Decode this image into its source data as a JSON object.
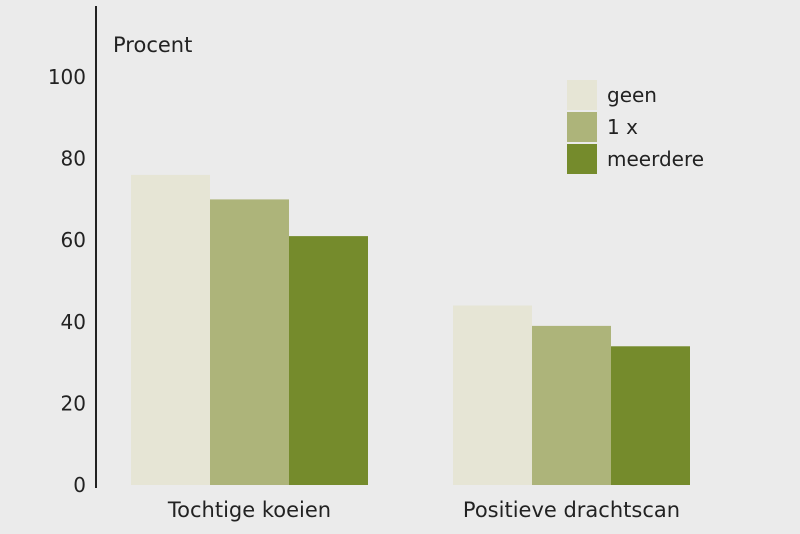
{
  "chart_data": {
    "type": "bar",
    "title": "",
    "xlabel": "",
    "ylabel": "Procent",
    "ylim": [
      0,
      115
    ],
    "yticks": [
      0,
      20,
      40,
      60,
      80,
      100
    ],
    "categories": [
      "Tochtige koeien",
      "Positieve drachtscan"
    ],
    "series": [
      {
        "name": "geen",
        "color": "#e6e5d5",
        "values": [
          76,
          44
        ]
      },
      {
        "name": "1 x",
        "color": "#adb47a",
        "values": [
          70,
          39
        ]
      },
      {
        "name": "meerdere",
        "color": "#758b2c",
        "values": [
          61,
          34
        ]
      }
    ],
    "grid": false,
    "legend_position": "top-right"
  }
}
